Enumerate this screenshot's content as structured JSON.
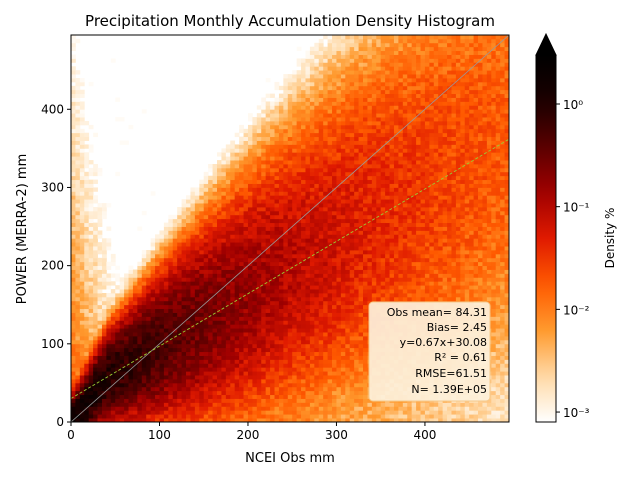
{
  "chart_data": {
    "type": "heatmap",
    "title": "Precipitation Monthly Accumulation Density Histogram",
    "xlabel": "NCEI Obs mm",
    "ylabel": "POWER (MERRA-2) mm",
    "xlim": [
      0,
      495
    ],
    "ylim": [
      0,
      495
    ],
    "x_ticks": [
      0,
      100,
      200,
      300,
      400
    ],
    "y_ticks": [
      0,
      100,
      200,
      300,
      400
    ],
    "bin_width": 5,
    "reference_lines": [
      {
        "kind": "one-to-one",
        "slope": 1,
        "intercept": 0,
        "color": "#999999"
      },
      {
        "kind": "regression",
        "slope": 0.67,
        "intercept": 30.08,
        "color": "#9acd32",
        "dashed": true
      }
    ],
    "density_model": {
      "description_units": "Density %",
      "peak_density_percent": 2.0,
      "min_density_percent": 0.0008,
      "spread_base_mm": 12,
      "spread_factor": 0.28,
      "cutoff_percent": 0.0009
    },
    "colorbar": {
      "label": "Density %",
      "scale": "log",
      "range": [
        0.0008,
        3.0
      ],
      "tick_labels": [
        "10⁻³",
        "10⁻²",
        "10⁻¹",
        "10⁰"
      ],
      "tick_values": [
        0.001,
        0.01,
        0.1,
        1.0
      ],
      "extend": "max",
      "colormap": "gist_heat_r",
      "color_stops": [
        "#ffffff",
        "#ffd9a6",
        "#ff9a2e",
        "#ff5a00",
        "#e01a00",
        "#a00000",
        "#5a0000",
        "#1a0000",
        "#000000"
      ]
    },
    "stats_box": {
      "lines": [
        "Obs mean= 84.31",
        "Bias= 2.45",
        "y=0.67x+30.08",
        "R² = 0.61",
        "RMSE=61.51",
        "N= 1.39E+05"
      ],
      "placement": "lower-right",
      "background": "#fdf1dc",
      "border": "#f5c98a"
    }
  }
}
